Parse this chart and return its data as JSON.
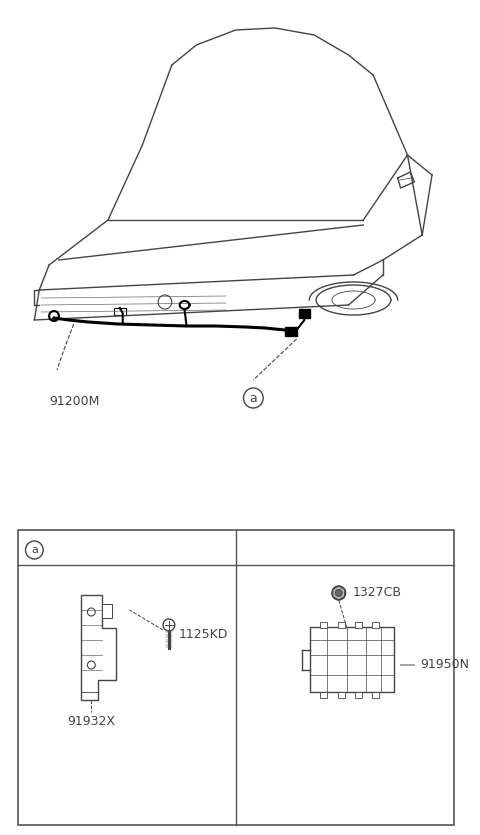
{
  "bg_color": "#ffffff",
  "line_color": "#444444",
  "part_label_91200M": "91200M",
  "part_label_a": "a",
  "part_label_91932X": "91932X",
  "part_label_1125KD": "1125KD",
  "part_label_1327CB": "1327CB",
  "part_label_91950N": "91950N",
  "font_size_labels": 9,
  "font_size_a": 9
}
